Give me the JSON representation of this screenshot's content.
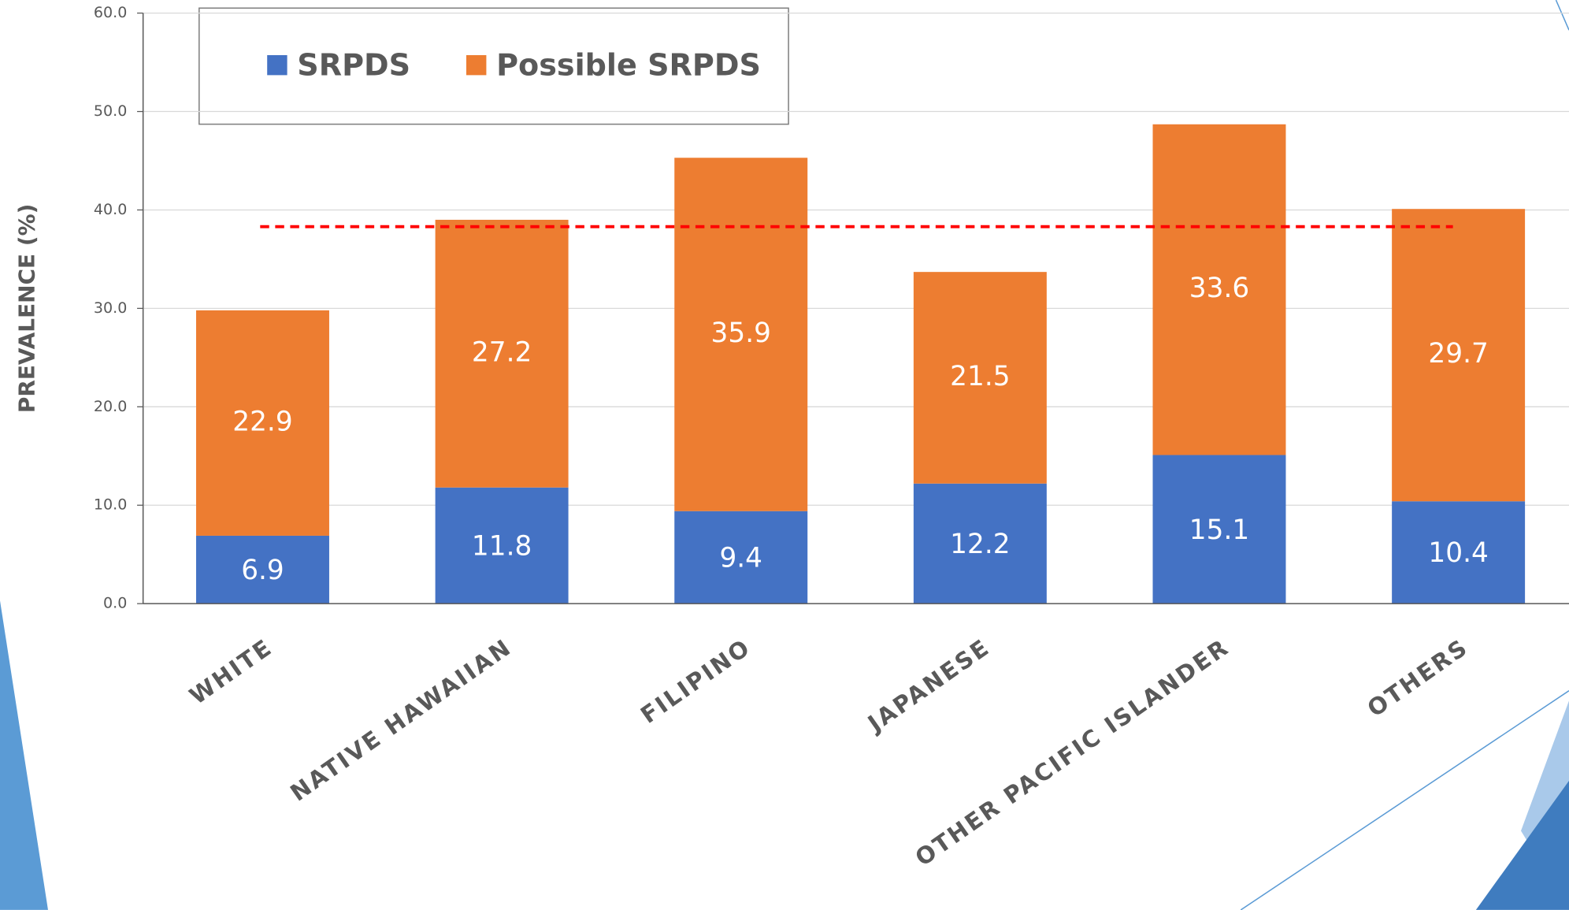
{
  "chart_data": {
    "type": "stacked_bar",
    "y_label": "PREVALENCE (%)",
    "categories": [
      "WHITE",
      "NATIVE HAWAIIAN",
      "FILIPINO",
      "JAPANESE",
      "OTHER PACIFIC ISLANDER",
      "OTHERS"
    ],
    "series": [
      {
        "name": "SRPDS",
        "color": "#4472c4",
        "values": [
          6.9,
          11.8,
          9.4,
          12.2,
          15.1,
          10.4
        ]
      },
      {
        "name": "Possible SRPDS",
        "color": "#ed7d31",
        "values": [
          22.9,
          27.2,
          35.9,
          21.5,
          33.6,
          29.7
        ]
      }
    ],
    "ylim": [
      0,
      60
    ],
    "yticks": [
      {
        "value": 0,
        "label": "0.0"
      },
      {
        "value": 10,
        "label": "10.0"
      },
      {
        "value": 20,
        "label": "20.0"
      },
      {
        "value": 30,
        "label": "30.0"
      },
      {
        "value": 40,
        "label": "40.0"
      },
      {
        "value": 50,
        "label": "50.0"
      },
      {
        "value": 60,
        "label": "60.0"
      }
    ],
    "grid": true,
    "reference_line": {
      "value": 38.3,
      "color": "#ff0000"
    }
  }
}
